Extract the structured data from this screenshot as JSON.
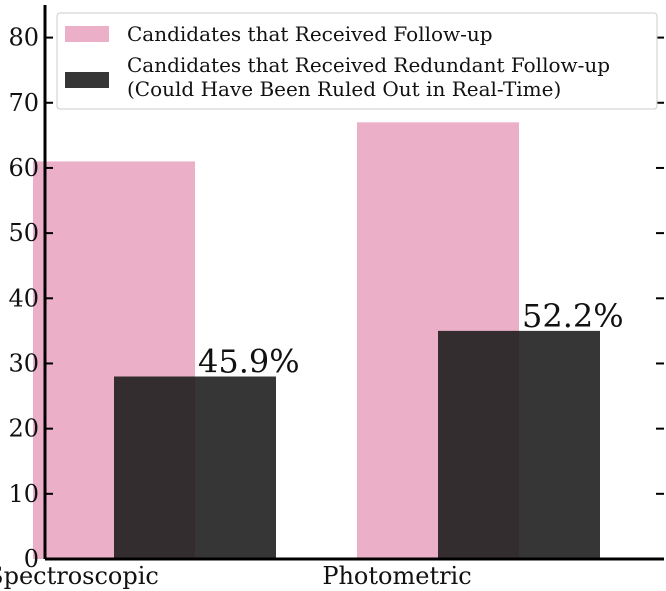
{
  "chart_data": {
    "type": "bar",
    "categories": [
      "Spectroscopic",
      "Photometric"
    ],
    "series": [
      {
        "name": "Candidates that Received Follow-up",
        "values": [
          61,
          67
        ],
        "color": "#ebb0c8"
      },
      {
        "name": "Candidates that Received Redundant Follow-up\n(Could Have Been Ruled Out in Real-Time)",
        "values": [
          28,
          35
        ],
        "color": "#1a1a1a",
        "opacity": 0.88
      }
    ],
    "bar_labels": [
      "45.9%",
      "52.2%"
    ],
    "y_ticks": [
      0,
      10,
      20,
      30,
      40,
      50,
      60,
      70,
      80
    ],
    "ylim": [
      0,
      85
    ],
    "title": "",
    "xlabel": "",
    "ylabel": "",
    "grid": false,
    "legend_position": "top"
  }
}
